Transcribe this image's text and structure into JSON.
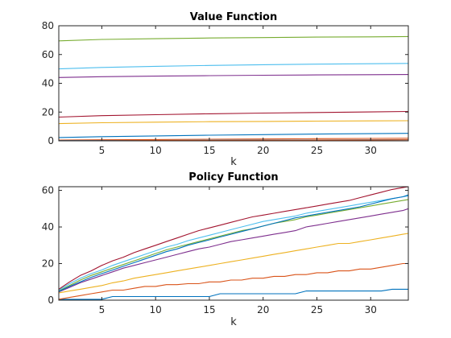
{
  "chart_data": [
    {
      "type": "line",
      "title": "Value Function",
      "xlabel": "k",
      "ylabel": "",
      "xlim": [
        1,
        33.5
      ],
      "ylim": [
        0,
        80
      ],
      "xticks": [
        5,
        10,
        15,
        20,
        25,
        30
      ],
      "yticks": [
        0,
        20,
        40,
        60,
        80
      ],
      "grid": false,
      "x": [
        1,
        5,
        10,
        15,
        20,
        25,
        30,
        33.5
      ],
      "series": [
        {
          "color": "#0072BD",
          "values": [
            2.3,
            2.9,
            3.4,
            3.9,
            4.3,
            4.7,
            5.0,
            5.2
          ]
        },
        {
          "color": "#D95319",
          "values": [
            0.5,
            0.7,
            0.9,
            1.1,
            1.3,
            1.5,
            1.7,
            1.8
          ]
        },
        {
          "color": "#EDB120",
          "values": [
            12.0,
            12.6,
            13.0,
            13.3,
            13.5,
            13.7,
            13.9,
            14.0
          ]
        },
        {
          "color": "#7E2F8E",
          "values": [
            44.0,
            44.6,
            45.0,
            45.3,
            45.6,
            45.8,
            46.0,
            46.1
          ]
        },
        {
          "color": "#77AC30",
          "values": [
            69.5,
            70.5,
            71.0,
            71.5,
            71.8,
            72.1,
            72.3,
            72.5
          ]
        },
        {
          "color": "#4DBEEE",
          "values": [
            50.0,
            51.0,
            51.8,
            52.4,
            52.9,
            53.3,
            53.6,
            53.8
          ]
        },
        {
          "color": "#A2142F",
          "values": [
            16.5,
            17.5,
            18.2,
            18.8,
            19.3,
            19.7,
            20.1,
            20.4
          ]
        },
        {
          "color": "#0072BD",
          "values": [
            0.1,
            0.2,
            0.3,
            0.4,
            0.5,
            0.6,
            0.7,
            0.8
          ]
        },
        {
          "color": "#D95319",
          "values": [
            0.0,
            0.1,
            0.2,
            0.3,
            0.4,
            0.5,
            0.6,
            0.7
          ]
        }
      ]
    },
    {
      "type": "line",
      "title": "Policy Function",
      "xlabel": "k",
      "ylabel": "",
      "xlim": [
        1,
        33.5
      ],
      "ylim": [
        0,
        62
      ],
      "xticks": [
        5,
        10,
        15,
        20,
        25,
        30
      ],
      "yticks": [
        0,
        20,
        40,
        60
      ],
      "grid": false,
      "x": [
        1,
        2,
        3,
        4,
        5,
        6,
        7,
        8,
        9,
        10,
        11,
        12,
        13,
        14,
        15,
        16,
        17,
        18,
        19,
        20,
        21,
        22,
        23,
        24,
        25,
        26,
        27,
        28,
        29,
        30,
        31,
        32,
        33,
        33.5
      ],
      "series": [
        {
          "color": "#0072BD",
          "values": [
            0.5,
            0.5,
            0.5,
            0.5,
            0.5,
            2,
            2,
            2,
            2,
            2,
            2,
            2,
            2,
            2,
            2,
            3.5,
            3.5,
            3.5,
            3.5,
            3.5,
            3.5,
            3.5,
            3.5,
            5,
            5,
            5,
            5,
            5,
            5,
            5,
            5,
            6,
            6,
            6
          ]
        },
        {
          "color": "#D95319",
          "values": [
            0.5,
            1.5,
            2.5,
            3.5,
            4.5,
            5.5,
            5.5,
            6.5,
            7.5,
            7.5,
            8.5,
            8.5,
            9,
            9,
            10,
            10,
            11,
            11,
            12,
            12,
            13,
            13,
            14,
            14,
            15,
            15,
            16,
            16,
            17,
            17,
            18,
            19,
            20,
            20
          ]
        },
        {
          "color": "#EDB120",
          "values": [
            4,
            5,
            6,
            7,
            8,
            9.5,
            10.5,
            12,
            13,
            14,
            15,
            16,
            17,
            18,
            19,
            20,
            21,
            22,
            23,
            24,
            25,
            26,
            27,
            28,
            29,
            30,
            31,
            31,
            32,
            33,
            34,
            35,
            36,
            36.5
          ]
        },
        {
          "color": "#7E2F8E",
          "values": [
            4.5,
            7,
            9.5,
            11.5,
            13.5,
            15.5,
            17.5,
            19,
            20.5,
            22,
            23.5,
            25,
            26.5,
            28,
            29,
            30.5,
            32,
            33,
            34,
            35,
            36,
            37,
            38,
            40,
            41,
            42,
            43,
            44,
            45,
            46,
            47,
            48,
            49,
            50
          ]
        },
        {
          "color": "#77AC30",
          "values": [
            5,
            8,
            11,
            13.5,
            15.5,
            17.5,
            19.5,
            21.5,
            23.5,
            25.5,
            27.5,
            29,
            30.5,
            32,
            33.5,
            35,
            36.5,
            38,
            39,
            40.5,
            42,
            43,
            44,
            45.5,
            46.5,
            47.5,
            48.5,
            49.5,
            50.5,
            51.5,
            52.5,
            53.5,
            54.5,
            55
          ]
        },
        {
          "color": "#4DBEEE",
          "values": [
            5.5,
            9,
            12,
            14.5,
            16.5,
            19,
            21,
            23,
            25,
            27,
            29,
            30.5,
            32.5,
            34,
            35.5,
            37,
            38.5,
            40,
            41.5,
            43,
            44,
            45,
            46,
            47.5,
            48.5,
            49.5,
            50.5,
            51.5,
            52.5,
            53.5,
            54.5,
            55.5,
            56.5,
            57
          ]
        },
        {
          "color": "#A2142F",
          "values": [
            6,
            10,
            13.5,
            16,
            19,
            21.5,
            23.5,
            26,
            28,
            30,
            32,
            34,
            36,
            38,
            39.5,
            41,
            42.5,
            44,
            45.5,
            46.5,
            47.5,
            48.5,
            49.5,
            50.5,
            51.5,
            52.5,
            53.5,
            54.5,
            56,
            57.5,
            59,
            60.5,
            61.5,
            62
          ]
        },
        {
          "color": "#0072BD",
          "values": [
            4.8,
            7.5,
            10,
            12.5,
            14.5,
            16.5,
            18.5,
            20.5,
            22.5,
            24.5,
            26.5,
            28,
            30,
            31.5,
            33,
            34.5,
            36,
            37.5,
            39,
            40.5,
            42,
            43.5,
            45,
            46,
            47,
            48,
            49,
            50,
            51,
            52.5,
            54,
            55.5,
            56.5,
            57.5
          ]
        }
      ]
    }
  ]
}
